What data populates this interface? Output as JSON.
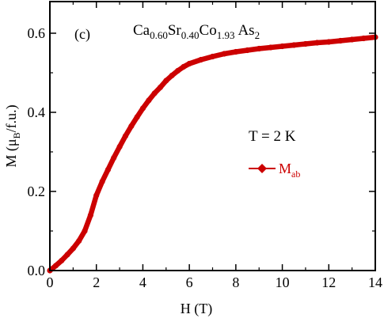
{
  "panel_label": "(c)",
  "compound": {
    "base": [
      "Ca",
      "Sr",
      "Co",
      "As"
    ],
    "sub": [
      "0.60",
      "0.40",
      "1.93",
      "2"
    ]
  },
  "temperature_label": "T = 2 K",
  "legend": {
    "main": "M",
    "sub": "ab"
  },
  "ylabel_parts": {
    "a": "M (μ",
    "sub": "B",
    "b": "/f.u.)"
  },
  "chart_data": {
    "type": "line",
    "xlabel": "H (T)",
    "ylabel": "M (μB/f.u.)",
    "xlim": [
      0,
      14
    ],
    "ylim": [
      0,
      0.68
    ],
    "xticks": [
      0,
      2,
      4,
      6,
      8,
      10,
      12,
      14
    ],
    "yticks": [
      0.0,
      0.2,
      0.4,
      0.6
    ],
    "ytick_labels": [
      "0.0",
      "0.2",
      "0.4",
      "0.6"
    ],
    "grid": false,
    "legend_position": "right",
    "series": [
      {
        "name": "Mab",
        "color": "#cc0000",
        "marker": "diamond",
        "x": [
          0,
          0.25,
          0.5,
          0.75,
          1.0,
          1.25,
          1.5,
          1.75,
          2.0,
          2.25,
          2.5,
          2.75,
          3.0,
          3.25,
          3.5,
          3.75,
          4.0,
          4.25,
          4.5,
          4.75,
          5.0,
          5.25,
          5.5,
          5.75,
          6.0,
          6.5,
          7.0,
          7.5,
          8.0,
          8.5,
          9.0,
          9.5,
          10.0,
          10.5,
          11.0,
          11.5,
          12.0,
          12.5,
          13.0,
          13.5,
          14.0
        ],
        "y": [
          0.0,
          0.012,
          0.025,
          0.04,
          0.056,
          0.075,
          0.1,
          0.14,
          0.19,
          0.225,
          0.255,
          0.285,
          0.313,
          0.34,
          0.365,
          0.388,
          0.41,
          0.43,
          0.448,
          0.463,
          0.48,
          0.493,
          0.505,
          0.515,
          0.523,
          0.533,
          0.541,
          0.548,
          0.553,
          0.557,
          0.561,
          0.564,
          0.567,
          0.57,
          0.573,
          0.576,
          0.578,
          0.581,
          0.584,
          0.587,
          0.59
        ]
      }
    ]
  }
}
